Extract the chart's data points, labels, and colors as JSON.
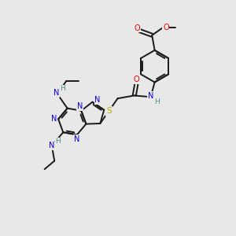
{
  "bg_color": "#e8e8e8",
  "bond_color": "#1a1a1a",
  "N_color": "#0000ee",
  "O_color": "#ee0000",
  "S_color": "#bbaa00",
  "H_color": "#4a8f8f",
  "lw": 1.4,
  "fs": 7.0,
  "figsize": [
    3.0,
    3.0
  ],
  "dpi": 100,
  "xlim": [
    0,
    10
  ],
  "ylim": [
    0,
    10
  ]
}
